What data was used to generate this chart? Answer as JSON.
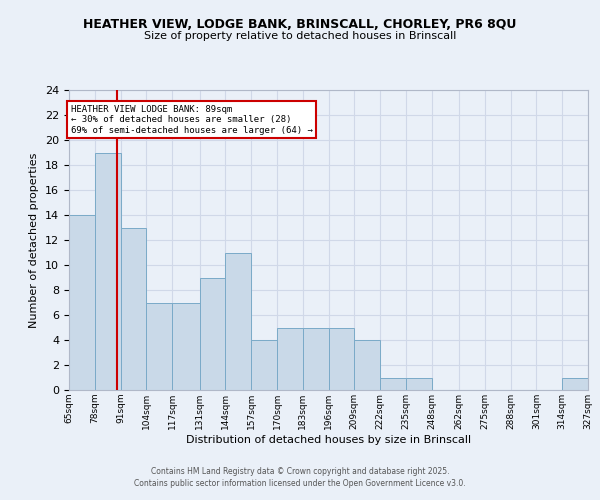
{
  "title_line1": "HEATHER VIEW, LODGE BANK, BRINSCALL, CHORLEY, PR6 8QU",
  "title_line2": "Size of property relative to detached houses in Brinscall",
  "xlabel": "Distribution of detached houses by size in Brinscall",
  "ylabel": "Number of detached properties",
  "bins": [
    65,
    78,
    91,
    104,
    117,
    131,
    144,
    157,
    170,
    183,
    196,
    209,
    222,
    235,
    248,
    262,
    275,
    288,
    301,
    314,
    327
  ],
  "bar_heights": [
    14,
    19,
    13,
    7,
    7,
    9,
    11,
    4,
    5,
    5,
    5,
    4,
    1,
    1,
    0,
    0,
    0,
    0,
    0,
    1
  ],
  "bar_color": "#c9d9e8",
  "bar_edge_color": "#7aaac8",
  "grid_color": "#d0d8e8",
  "vline_x": 89,
  "vline_color": "#cc0000",
  "annotation_box_text": "HEATHER VIEW LODGE BANK: 89sqm\n← 30% of detached houses are smaller (28)\n69% of semi-detached houses are larger (64) →",
  "annotation_box_edgecolor": "#cc0000",
  "annotation_box_facecolor": "#ffffff",
  "ylim": [
    0,
    24
  ],
  "yticks": [
    0,
    2,
    4,
    6,
    8,
    10,
    12,
    14,
    16,
    18,
    20,
    22,
    24
  ],
  "tick_labels": [
    "65sqm",
    "78sqm",
    "91sqm",
    "104sqm",
    "117sqm",
    "131sqm",
    "144sqm",
    "157sqm",
    "170sqm",
    "183sqm",
    "196sqm",
    "209sqm",
    "222sqm",
    "235sqm",
    "248sqm",
    "262sqm",
    "275sqm",
    "288sqm",
    "301sqm",
    "314sqm",
    "327sqm"
  ],
  "footer_text": "Contains HM Land Registry data © Crown copyright and database right 2025.\nContains public sector information licensed under the Open Government Licence v3.0.",
  "bg_color": "#eaf0f8",
  "plot_bg_color": "#eaf0f8"
}
